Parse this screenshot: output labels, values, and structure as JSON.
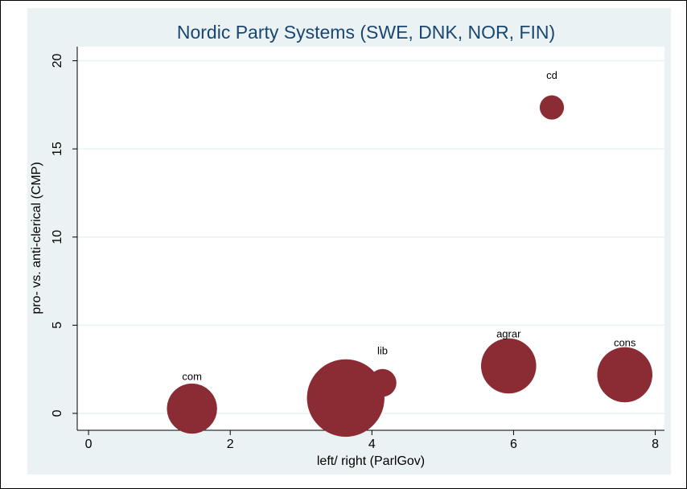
{
  "chart_data": {
    "type": "bubble",
    "title": "Nordic Party Systems (SWE, DNK, NOR, FIN)",
    "x_label": "left/ right (ParlGov)",
    "y_label": "pro- vs. anti-clerical (CMP)",
    "xlim": [
      -0.16,
      8.13
    ],
    "xticks": [
      0,
      2,
      4,
      6,
      8
    ],
    "ylim": [
      -0.96,
      20.8
    ],
    "yticks": [
      0,
      5,
      10,
      15,
      20
    ],
    "grid": true,
    "series": [
      {
        "color": "#8b2b33",
        "x": [
          0,
          1.46,
          3.63,
          4.15,
          5.93,
          6.54,
          7.57
        ],
        "values": [
          0,
          0.27,
          0.87,
          1.73,
          2.69,
          17.35,
          2.19
        ],
        "sizes": [
          0,
          96,
          230,
          29,
          116,
          22,
          116
        ],
        "labels": [
          null,
          "com",
          null,
          "lib",
          "agrar",
          "cd",
          "cons"
        ]
      }
    ]
  }
}
